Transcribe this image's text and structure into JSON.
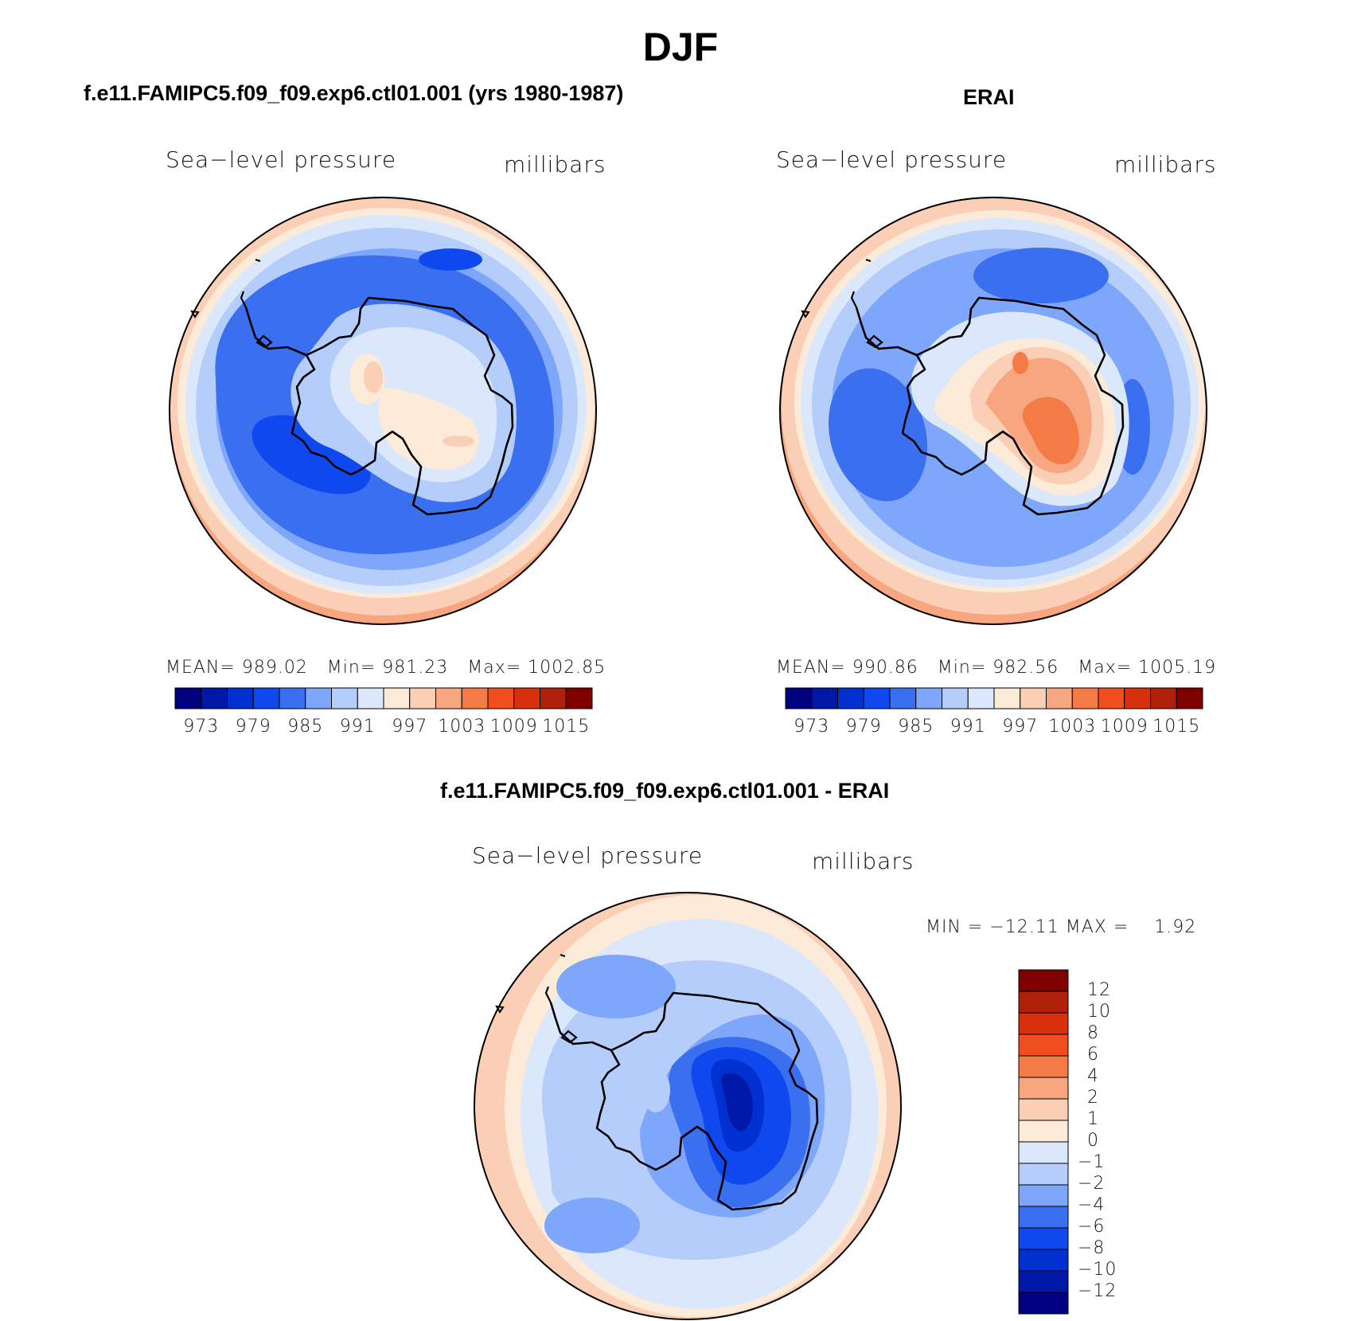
{
  "title": "DJF",
  "panels": [
    {
      "id": "model",
      "title": "f.e11.FAMIPC5.f09_f09.exp6.ctl01.001 (yrs 1980-1987)",
      "left_label": "Sea−level pressure",
      "right_label": "millibars",
      "stats": {
        "mean_label": "MEAN=",
        "mean": "989.02",
        "min_label": "Min=",
        "min": "981.23",
        "max_label": "Max=",
        "max": "1002.85"
      }
    },
    {
      "id": "obs",
      "title": "ERAI",
      "left_label": "Sea−level pressure",
      "right_label": "millibars",
      "stats": {
        "mean_label": "MEAN=",
        "mean": "990.86",
        "min_label": "Min=",
        "min": "982.56",
        "max_label": "Max=",
        "max": "1005.19"
      }
    },
    {
      "id": "diff",
      "title": "f.e11.FAMIPC5.f09_f09.exp6.ctl01.001 - ERAI",
      "left_label": "Sea−level pressure",
      "right_label": "millibars",
      "stats": {
        "min_label": "MIN =",
        "min": "−12.11",
        "max_label": "MAX =",
        "max": "1.92"
      }
    }
  ],
  "abs_colorbar": {
    "colors": [
      "#000080",
      "#0018a8",
      "#0030d0",
      "#1048f0",
      "#3a70f0",
      "#7ea6fa",
      "#b5cdfb",
      "#dbe8fb",
      "#fdebd9",
      "#fbcfb5",
      "#f8a680",
      "#f47a46",
      "#f04e1f",
      "#d8300c",
      "#b01f08",
      "#800000"
    ],
    "tick_labels": [
      "973",
      "979",
      "985",
      "991",
      "997",
      "1003",
      "1009",
      "1015"
    ]
  },
  "diff_colorbar": {
    "colors": [
      "#000080",
      "#0018a8",
      "#0030d0",
      "#1048f0",
      "#3a70f0",
      "#7ea6fa",
      "#b5cdfb",
      "#dbe8fb",
      "#fdebd9",
      "#fbcfb5",
      "#f8a680",
      "#f47a46",
      "#f04e1f",
      "#d8300c",
      "#b01f08",
      "#800000"
    ],
    "tick_labels": [
      "12",
      "10",
      "8",
      "6",
      "4",
      "2",
      "1",
      "0",
      "−1",
      "−2",
      "−4",
      "−6",
      "−8",
      "−10",
      "−12"
    ]
  }
}
